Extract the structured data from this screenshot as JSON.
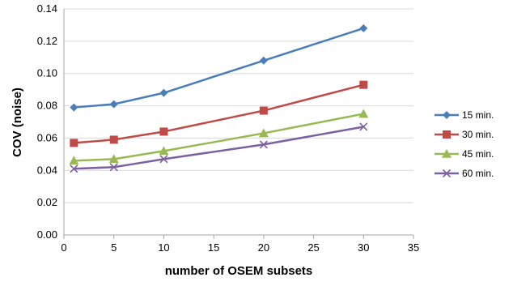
{
  "chart_data": {
    "type": "line",
    "xlabel": "number of OSEM subsets",
    "ylabel": "COV (noise)",
    "xlim": [
      0,
      35
    ],
    "ylim": [
      0,
      0.14
    ],
    "x_ticks": [
      "0",
      "5",
      "10",
      "15",
      "20",
      "25",
      "30",
      "35"
    ],
    "y_ticks": [
      "0.00",
      "0.02",
      "0.04",
      "0.06",
      "0.08",
      "0.10",
      "0.12",
      "0.14"
    ],
    "grid": "horizontal",
    "legend_position": "right",
    "x": [
      1,
      5,
      10,
      20,
      30
    ],
    "series": [
      {
        "name": "15 min.",
        "color": "#4a7ebb",
        "marker": "diamond",
        "values": [
          0.079,
          0.081,
          0.088,
          0.108,
          0.128
        ]
      },
      {
        "name": "30 min.",
        "color": "#be4b48",
        "marker": "square",
        "values": [
          0.057,
          0.059,
          0.064,
          0.077,
          0.093
        ]
      },
      {
        "name": "45 min.",
        "color": "#98b954",
        "marker": "triangle",
        "values": [
          0.046,
          0.047,
          0.052,
          0.063,
          0.075
        ]
      },
      {
        "name": "60 min.",
        "color": "#7d60a0",
        "marker": "x",
        "values": [
          0.041,
          0.042,
          0.047,
          0.056,
          0.067
        ]
      }
    ]
  }
}
